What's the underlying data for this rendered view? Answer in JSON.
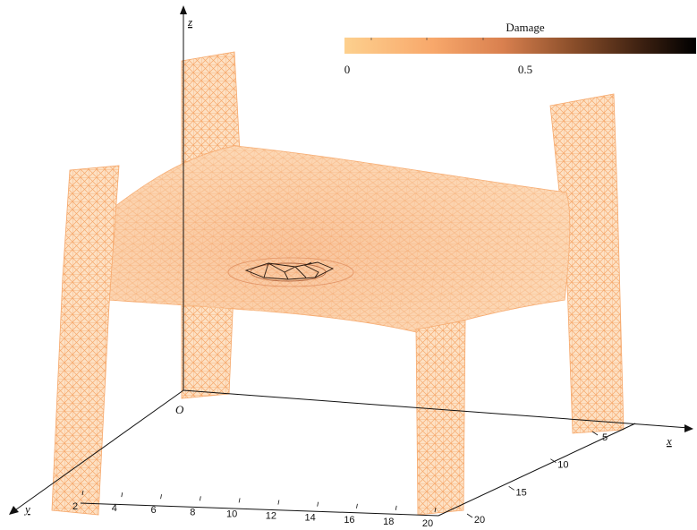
{
  "axes": {
    "z_label": "z",
    "x_label": "x",
    "y_label": "y",
    "origin_label": "O",
    "y_ticks": [
      "2",
      "4",
      "6",
      "8",
      "10",
      "12",
      "14",
      "16",
      "18",
      "20"
    ],
    "x_ticks": [
      "5",
      "10",
      "15",
      "20"
    ]
  },
  "colorbar": {
    "title": "Damage",
    "tick_0": "0",
    "tick_05": "0.5",
    "gradient": [
      "#fdd08e",
      "#f8a86b",
      "#d9804f",
      "#8a4e2a",
      "#3a1f10",
      "#000000"
    ]
  },
  "colors": {
    "mesh": "#f7b57d",
    "damage_dark": "#2a1a10"
  }
}
